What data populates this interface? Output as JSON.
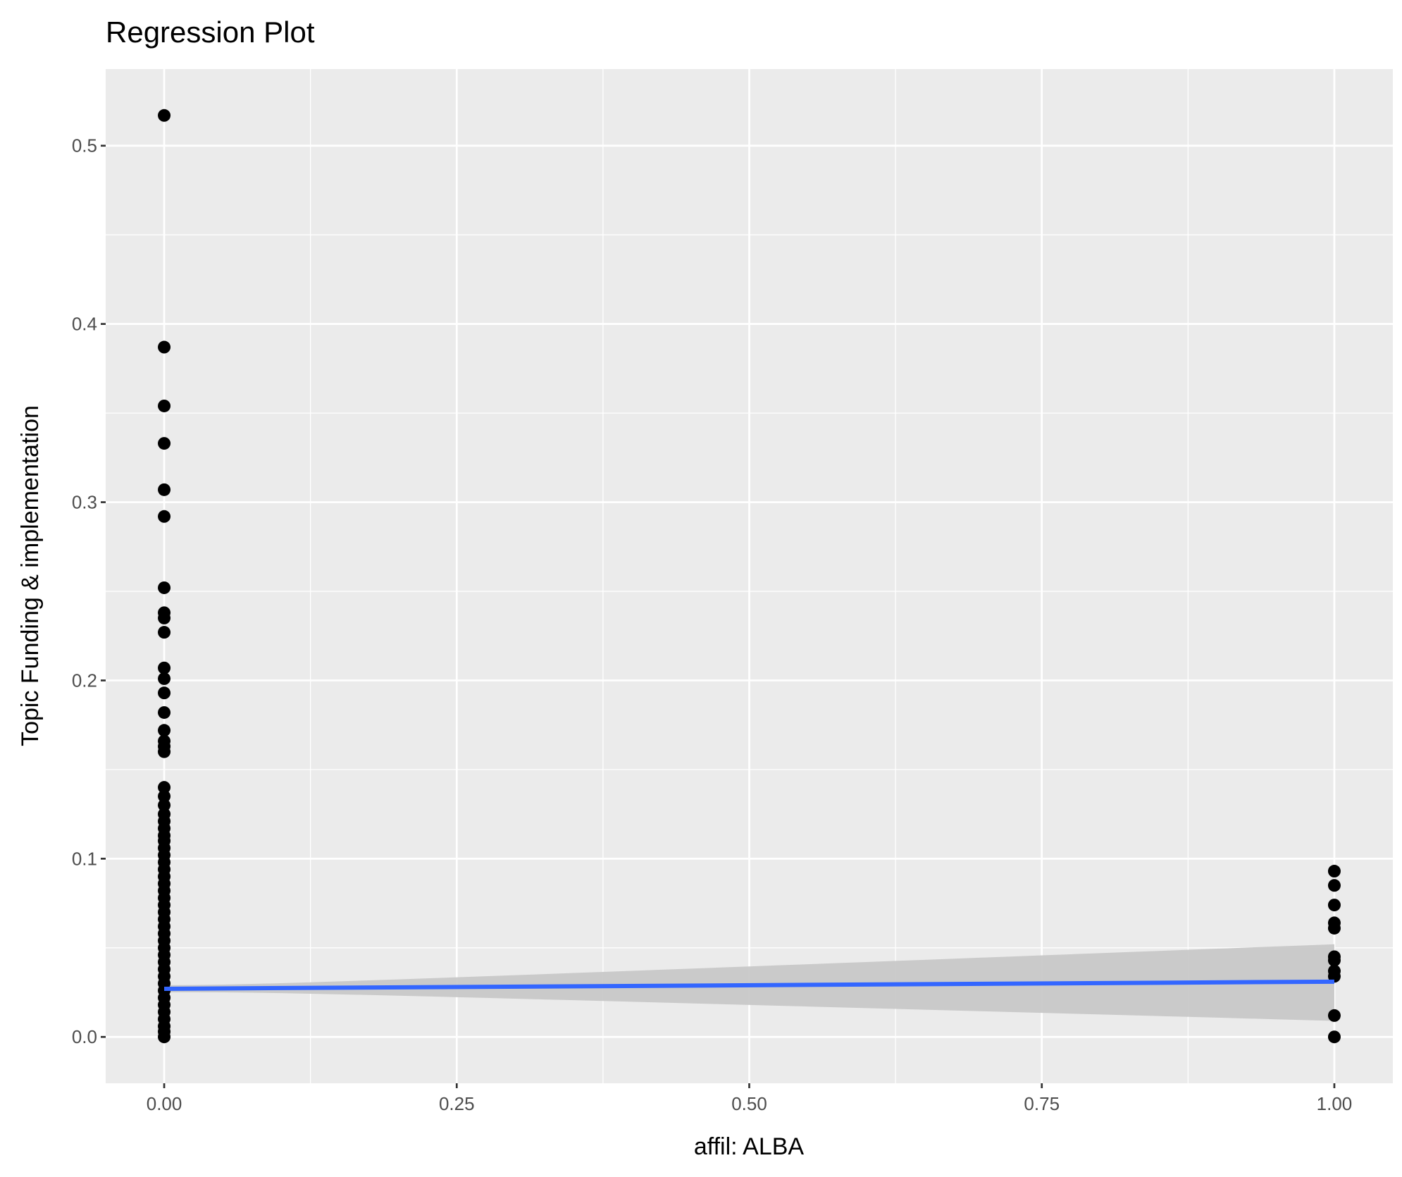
{
  "chart_data": {
    "type": "scatter",
    "title": "Regression Plot",
    "xlabel": "affil: ALBA",
    "ylabel": "Topic Funding & implementation",
    "xlim": [
      -0.05,
      1.05
    ],
    "ylim": [
      -0.026,
      0.543
    ],
    "x_ticks": [
      0,
      0.25,
      0.5,
      0.75,
      1
    ],
    "x_tick_labels": [
      "0.00",
      "0.25",
      "0.50",
      "0.75",
      "1.00"
    ],
    "y_ticks": [
      0,
      0.1,
      0.2,
      0.3,
      0.4,
      0.5
    ],
    "y_tick_labels": [
      "0.0",
      "0.1",
      "0.2",
      "0.3",
      "0.4",
      "0.5"
    ],
    "grid": true,
    "background": "#ebebeb",
    "point_color": "#000000",
    "line_color": "#3366ff",
    "ci_color": "#c8c8c8",
    "points": {
      "x0": [
        0.517,
        0.387,
        0.354,
        0.333,
        0.307,
        0.292,
        0.252,
        0.238,
        0.235,
        0.227,
        0.207,
        0.201,
        0.193,
        0.182,
        0.172,
        0.166,
        0.163,
        0.16,
        0.14,
        0.135,
        0.13,
        0.125,
        0.121,
        0.117,
        0.113,
        0.11,
        0.106,
        0.102,
        0.098,
        0.094,
        0.09,
        0.086,
        0.082,
        0.078,
        0.074,
        0.07,
        0.066,
        0.062,
        0.058,
        0.054,
        0.05,
        0.046,
        0.042,
        0.038,
        0.034,
        0.03,
        0.026,
        0.022,
        0.018,
        0.014,
        0.01,
        0.006,
        0.003,
        0.0
      ],
      "x1": [
        0.093,
        0.085,
        0.074,
        0.064,
        0.061,
        0.045,
        0.043,
        0.037,
        0.034,
        0.012,
        0.0
      ]
    },
    "regression": {
      "x": [
        0,
        1
      ],
      "y": [
        0.027,
        0.031
      ],
      "ci_lower": [
        0.025,
        0.009
      ],
      "ci_upper": [
        0.029,
        0.052
      ]
    }
  }
}
